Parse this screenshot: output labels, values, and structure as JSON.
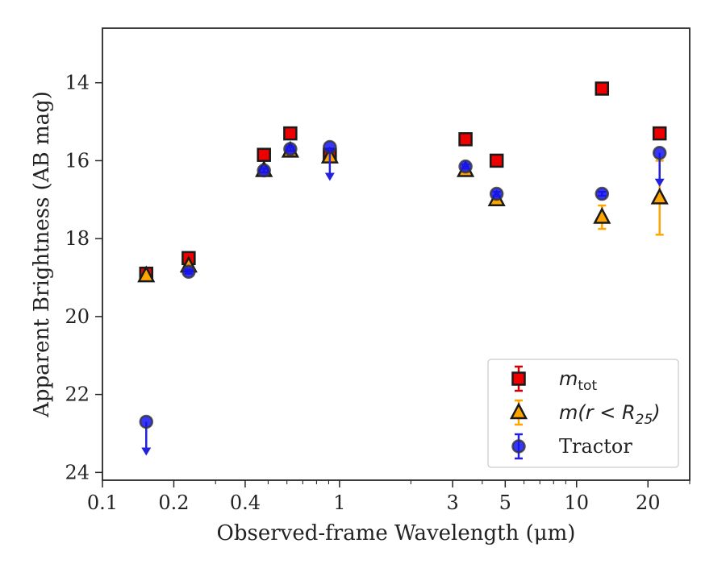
{
  "chart_data": {
    "type": "scatter",
    "title": "",
    "xlabel": "Observed-frame Wavelength (μm)",
    "ylabel": "Apparent Brightness (AB mag)",
    "xscale": "log",
    "xlim": [
      0.1,
      30
    ],
    "ylim": [
      24.2,
      12.6
    ],
    "y_inverted": true,
    "x_ticks": [
      {
        "value": 0.1,
        "label": "0.1"
      },
      {
        "value": 0.2,
        "label": "0.2"
      },
      {
        "value": 0.4,
        "label": "0.4"
      },
      {
        "value": 1,
        "label": "1"
      },
      {
        "value": 3,
        "label": "3"
      },
      {
        "value": 5,
        "label": "5"
      },
      {
        "value": 10,
        "label": "10"
      },
      {
        "value": 20,
        "label": "20"
      }
    ],
    "y_ticks": [
      {
        "value": 14,
        "label": "14"
      },
      {
        "value": 16,
        "label": "16"
      },
      {
        "value": 18,
        "label": "18"
      },
      {
        "value": 20,
        "label": "20"
      },
      {
        "value": 22,
        "label": "22"
      },
      {
        "value": 24,
        "label": "24"
      }
    ],
    "legend_position": "lower-right",
    "grid": false,
    "series": [
      {
        "name": "m_tot",
        "legend_label": {
          "base": "m",
          "sub": "tot"
        },
        "marker": "square",
        "color": "#ee0000",
        "error_color": "#cc0000",
        "points": [
          {
            "x": 0.153,
            "y": 18.9,
            "err": 0.05
          },
          {
            "x": 0.231,
            "y": 18.5,
            "err": 0.05
          },
          {
            "x": 0.48,
            "y": 15.85,
            "err": 0.05
          },
          {
            "x": 0.62,
            "y": 15.3,
            "err": 0.05
          },
          {
            "x": 0.91,
            "y": 15.85,
            "err": 0.05
          },
          {
            "x": 3.4,
            "y": 15.45,
            "err": 0.05
          },
          {
            "x": 4.6,
            "y": 16.0,
            "err": 0.05
          },
          {
            "x": 12.8,
            "y": 14.15,
            "err": 0.05
          },
          {
            "x": 22.4,
            "y": 15.3,
            "err": 0.05
          }
        ]
      },
      {
        "name": "m(r<R25)",
        "legend_label": {
          "base": "m(r < R",
          "sub": "25",
          "tail": ")"
        },
        "marker": "triangle",
        "color": "#ffa500",
        "error_color": "#ffa500",
        "points": [
          {
            "x": 0.153,
            "y": 18.95,
            "err": 0.05
          },
          {
            "x": 0.231,
            "y": 18.7,
            "err": 0.05
          },
          {
            "x": 0.48,
            "y": 16.25,
            "err": 0.05
          },
          {
            "x": 0.62,
            "y": 15.75,
            "err": 0.05
          },
          {
            "x": 0.91,
            "y": 15.9,
            "err": 0.05
          },
          {
            "x": 3.4,
            "y": 16.25,
            "err": 0.05
          },
          {
            "x": 4.6,
            "y": 17.0,
            "err": 0.05
          },
          {
            "x": 12.8,
            "y": 17.45,
            "err": 0.3
          },
          {
            "x": 22.4,
            "y": 16.95,
            "err": 0.95
          }
        ]
      },
      {
        "name": "Tractor",
        "legend_label": {
          "base": "Tractor"
        },
        "marker": "circle",
        "color": "#1515f0",
        "error_color": "#2222dd",
        "points": [
          {
            "x": 0.153,
            "y": 22.7,
            "upper_limit": true
          },
          {
            "x": 0.231,
            "y": 18.85,
            "err": 0.05
          },
          {
            "x": 0.48,
            "y": 16.25,
            "err": 0.05
          },
          {
            "x": 0.62,
            "y": 15.7,
            "err": 0.05
          },
          {
            "x": 0.91,
            "y": 15.65,
            "upper_limit": true
          },
          {
            "x": 3.4,
            "y": 16.15,
            "err": 0.05
          },
          {
            "x": 4.6,
            "y": 16.85,
            "err": 0.05
          },
          {
            "x": 12.8,
            "y": 16.85,
            "err": 0.05
          },
          {
            "x": 22.4,
            "y": 15.8,
            "upper_limit": true
          }
        ]
      }
    ]
  }
}
